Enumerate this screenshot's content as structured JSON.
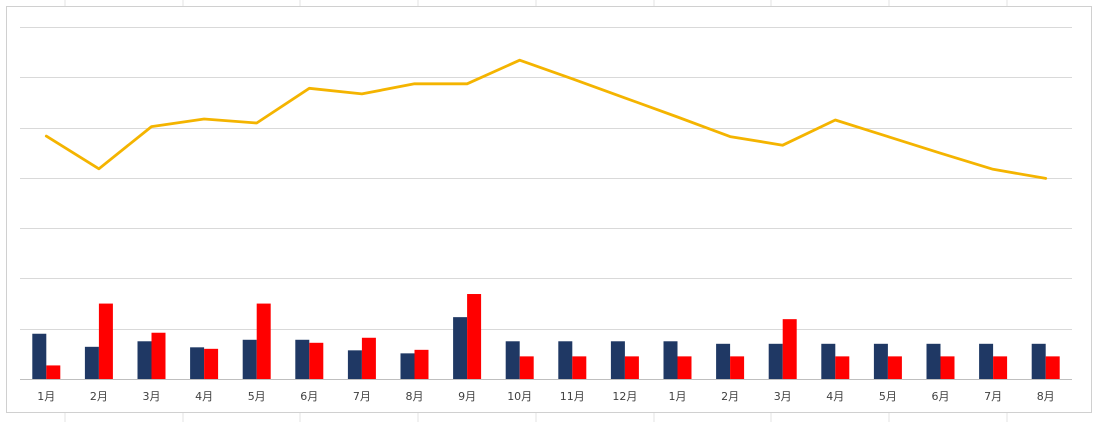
{
  "chart_data": {
    "type": "bar",
    "categories": [
      "1月",
      "2月",
      "3月",
      "4月",
      "5月",
      "6月",
      "7月",
      "8月",
      "9月",
      "10月",
      "11月",
      "12月",
      "1月",
      "2月",
      "3月",
      "4月",
      "5月",
      "6月",
      "7月",
      "8月"
    ],
    "series": [
      {
        "kind": "bar",
        "color": "#1f3864",
        "values": [
          0.9,
          0.64,
          0.75,
          0.63,
          0.78,
          0.78,
          0.57,
          0.51,
          1.23,
          0.75,
          0.75,
          0.75,
          0.75,
          0.7,
          0.7,
          0.7,
          0.7,
          0.7,
          0.7,
          0.7
        ]
      },
      {
        "kind": "bar",
        "color": "#ff0000",
        "values": [
          0.27,
          1.5,
          0.92,
          0.6,
          1.5,
          0.72,
          0.82,
          0.58,
          1.69,
          0.45,
          0.45,
          0.45,
          0.45,
          0.45,
          1.19,
          0.45,
          0.45,
          0.45,
          0.45,
          0.45
        ]
      },
      {
        "kind": "line",
        "color": "#f4b400",
        "values": [
          4.83,
          4.18,
          5.02,
          5.17,
          5.09,
          5.78,
          5.67,
          5.87,
          5.87,
          6.34,
          5.97,
          5.59,
          5.21,
          4.82,
          4.65,
          5.15,
          4.82,
          4.49,
          4.17,
          3.99
        ]
      }
    ],
    "ylim": [
      0,
      7
    ],
    "gridlines": "horizontal",
    "legend": "none"
  }
}
